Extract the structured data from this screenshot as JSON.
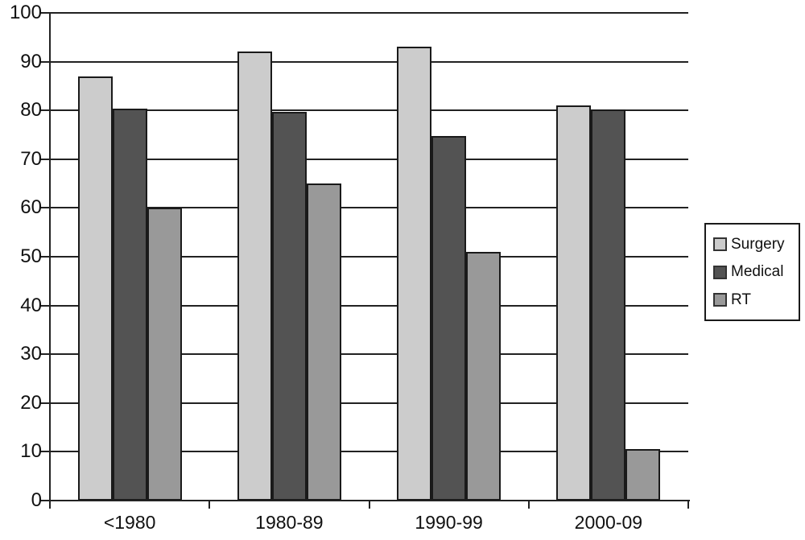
{
  "chart_data": {
    "type": "bar",
    "title": "",
    "xlabel": "",
    "ylabel": "",
    "categories": [
      "<1980",
      "1980-89",
      "1990-99",
      "2000-09"
    ],
    "series": [
      {
        "name": "Surgery",
        "color": "#cccccc",
        "values": [
          87,
          92,
          93,
          81
        ]
      },
      {
        "name": "Medical",
        "color": "#535353",
        "values": [
          80.3,
          79.7,
          74.8,
          80.2
        ]
      },
      {
        "name": "RT",
        "color": "#999999",
        "values": [
          60,
          65,
          51,
          10.5
        ]
      }
    ],
    "ylim": [
      0,
      100
    ],
    "ytick_step": 10,
    "ytick_labels": [
      "0",
      "10",
      "20",
      "30",
      "40",
      "50",
      "60",
      "70",
      "80",
      "90",
      "100"
    ],
    "grid": true,
    "legend_position": "right"
  },
  "colors": {
    "axis": "#222222",
    "bar_border": "#1a1a1a",
    "background": "#ffffff"
  }
}
